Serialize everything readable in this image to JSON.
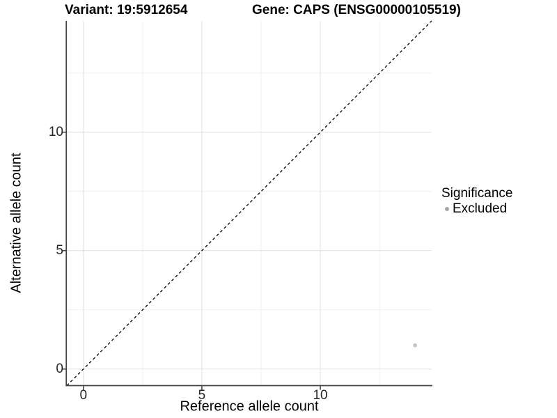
{
  "titles": {
    "variant": "Variant: 19:5912654",
    "gene": "Gene: CAPS (ENSG00000105519)"
  },
  "axes": {
    "x_label": "Reference allele count",
    "y_label": "Alternative allele count",
    "x_ticks": [
      "0",
      "5",
      "10"
    ],
    "y_ticks": [
      "0",
      "5",
      "10"
    ]
  },
  "legend": {
    "title": "Significance",
    "items": [
      {
        "label": "Excluded",
        "marker": "circle-icon",
        "color": "#a6a6a6"
      }
    ]
  },
  "colors": {
    "point": "#c3c3c3",
    "grid_major": "#e3e3e3",
    "grid_minor": "#efefef",
    "axis_line": "#444444",
    "reference_line": "#000000"
  },
  "chart_data": {
    "type": "scatter",
    "title": "Variant: 19:5912654 / Gene: CAPS (ENSG00000105519)",
    "xlabel": "Reference allele count",
    "ylabel": "Alternative allele count",
    "xlim": [
      -0.7,
      14.7
    ],
    "ylim": [
      -0.7,
      14.7
    ],
    "x_major_ticks": [
      0,
      5,
      10
    ],
    "x_minor_ticks": [
      2.5,
      7.5,
      12.5
    ],
    "y_major_ticks": [
      0,
      5,
      10
    ],
    "y_minor_ticks": [
      2.5,
      7.5,
      12.5
    ],
    "grid": "major+minor",
    "series": [
      {
        "name": "Excluded",
        "color": "#c3c3c3",
        "points": [
          {
            "x": 14,
            "y": 1
          }
        ]
      }
    ],
    "reference_line": {
      "equation": "y = x",
      "style": "dashed",
      "color": "#000000"
    },
    "legend": {
      "title": "Significance",
      "position": "right",
      "entries": [
        "Excluded"
      ]
    }
  }
}
